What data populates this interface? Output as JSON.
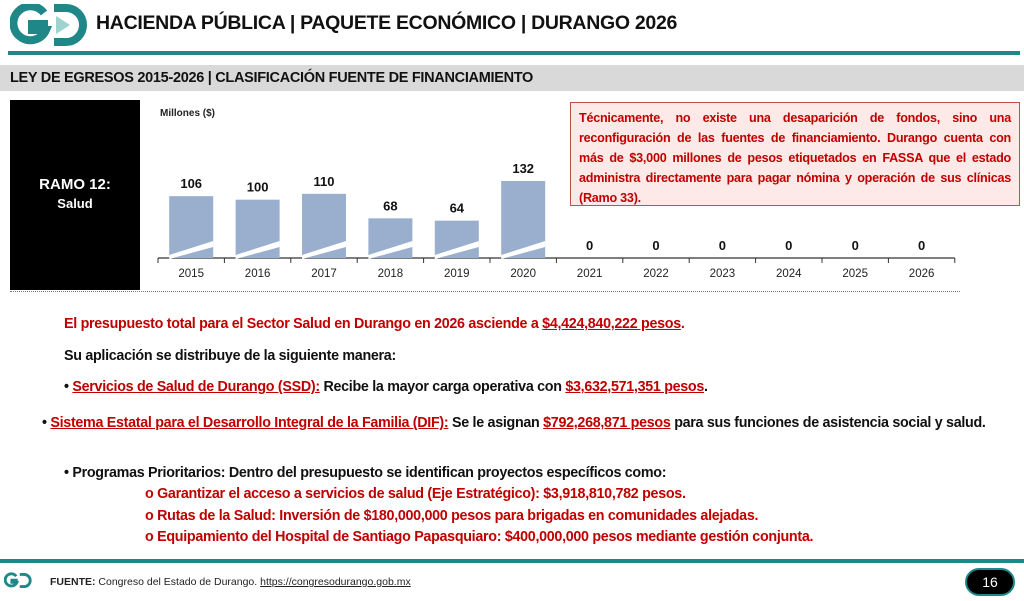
{
  "header": {
    "logo_text": "GD",
    "title": "HACIENDA PÚBLICA | PAQUETE ECONÓMICO | DURANGO 2026",
    "subtitle": "LEY DE EGRESOS 2015-2026 | CLASIFICACIÓN FUENTE DE FINANCIAMIENTO"
  },
  "ramo": {
    "line1": "RAMO 12:",
    "line2": "Salud"
  },
  "note": "Técnicamente, no existe una desaparición de fondos, sino una reconfiguración de las fuentes de financiamiento. Durango cuenta con más de $3,000 millones de pesos etiquetados en FASSA que el estado administra directamente para pagar nómina y operación de sus clínicas (Ramo 33).",
  "chart_data": {
    "type": "bar",
    "ylabel": "Millones ($)",
    "categories": [
      "2015",
      "2016",
      "2017",
      "2018",
      "2019",
      "2020",
      "2021",
      "2022",
      "2023",
      "2024",
      "2025",
      "2026"
    ],
    "values": [
      106,
      100,
      110,
      68,
      64,
      132,
      0,
      0,
      0,
      0,
      0,
      0
    ],
    "ylim": [
      0,
      150
    ],
    "grid": false,
    "bar_color": "#9aaecd",
    "axis_break": true
  },
  "body": {
    "p1_pre": "El presupuesto total para el Sector Salud en Durango en 2026 asciende a ",
    "p1_amount": "$4,424,840,222 pesos",
    "p1_post": ".",
    "p2": "Su aplicación se distribuye de la siguiente manera:",
    "p3_bullet": "• ",
    "p3_link": "Servicios de Salud de Durango (SSD):",
    "p3_mid": " Recibe la mayor carga operativa con ",
    "p3_amount": "$3,632,571,351 pesos",
    "p3_post": ".",
    "p4_bullet": "• ",
    "p4_link": "Sistema Estatal para el Desarrollo Integral de la Familia (DIF):",
    "p4_mid": " Se le asignan ",
    "p4_amount": "$792,268,871 pesos",
    "p4_post": " para sus funciones de asistencia social y salud.",
    "p5": "• Programas Prioritarios: Dentro del presupuesto se identifican proyectos específicos como:",
    "subitems": [
      "o Garantizar el acceso a servicios de salud (Eje Estratégico): $3,918,810,782 pesos.",
      "o Rutas de la Salud: Inversión de $180,000,000 pesos para brigadas en comunidades alejadas.",
      "o Equipamiento del Hospital de Santiago Papasquiaro: $400,000,000 pesos mediante gestión conjunta."
    ]
  },
  "footer": {
    "label": "FUENTE:",
    "text": " Congreso del Estado de Durango. ",
    "link": "https://congresodurango.gob.mx",
    "page": "16"
  },
  "colors": {
    "teal": "#1f8787",
    "red": "#c00000",
    "bar": "#9aaecd"
  }
}
